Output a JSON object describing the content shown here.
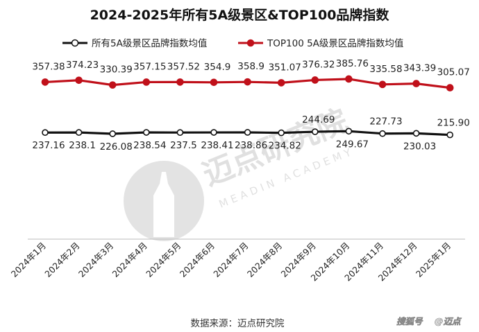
{
  "chart_data": {
    "type": "line",
    "title": "2024-2025年所有5A级景区&TOP100品牌指数",
    "categories": [
      "2024年1月",
      "2024年2月",
      "2024年3月",
      "2024年4月",
      "2024年5月",
      "2024年6月",
      "2024年7月",
      "2024年8月",
      "2024年9月",
      "2024年10月",
      "2024年11月",
      "2024年12月",
      "2025年1月"
    ],
    "series": [
      {
        "name": "所有5A级景区品牌指数均值",
        "color": "#111111",
        "values": [
          237.16,
          238.1,
          226.08,
          238.54,
          237.5,
          238.41,
          238.86,
          234.82,
          244.69,
          249.67,
          227.73,
          230.03,
          215.9
        ],
        "labels": [
          "237.16",
          "238.1",
          "226.08",
          "238.54",
          "237.5",
          "238.41",
          "238.86",
          "234.82",
          "244.69",
          "249.67",
          "227.73",
          "230.03",
          "215.90"
        ]
      },
      {
        "name": "TOP100 5A级景区品牌指数均值",
        "color": "#c0101a",
        "values": [
          357.38,
          374.23,
          330.39,
          357.15,
          357.52,
          354.9,
          358.9,
          351.07,
          376.32,
          385.76,
          335.58,
          343.39,
          305.07
        ],
        "labels": [
          "357.38",
          "374.23",
          "330.39",
          "357.15",
          "357.52",
          "354.9",
          "358.9",
          "351.07",
          "376.32",
          "385.76",
          "335.58",
          "343.39",
          "305.07"
        ]
      }
    ],
    "legend": "top",
    "grid": false,
    "xlabel": "",
    "ylabel": ""
  },
  "footer": {
    "source": "数据来源：迈点研究院",
    "watermark_name": "迈点研究院",
    "watermark_sub": "MEADIN ACADEMY",
    "badge_platform": "搜狐号",
    "badge_account": "@迈点"
  }
}
